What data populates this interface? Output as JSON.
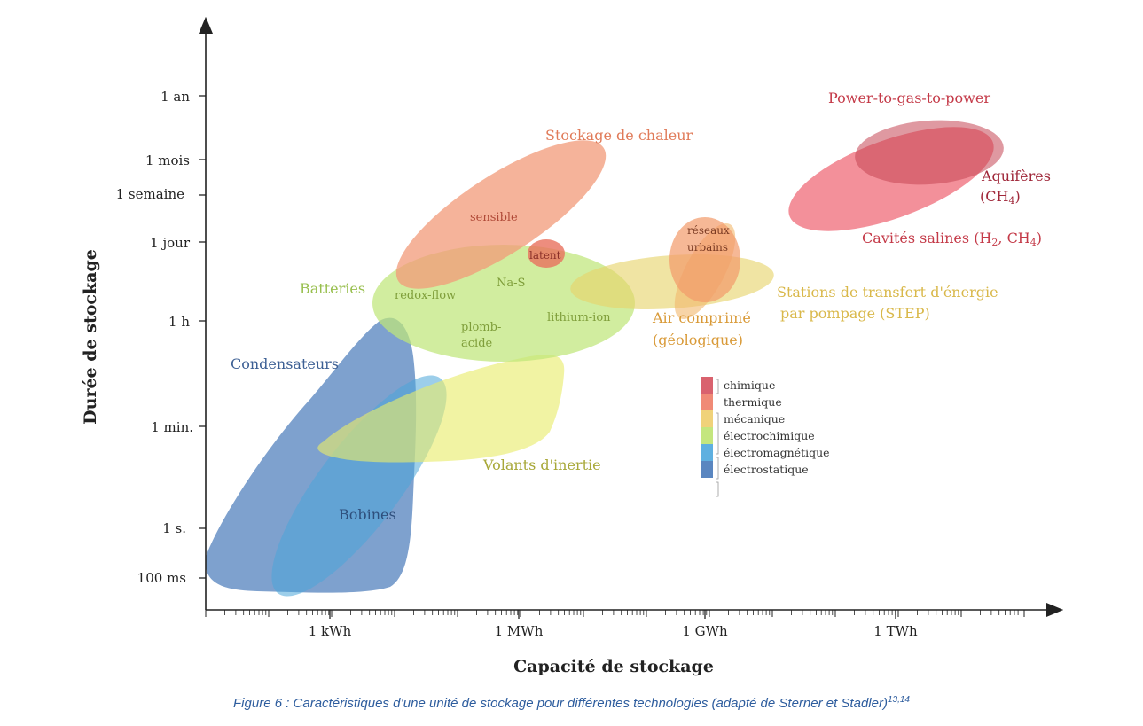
{
  "chart_data": {
    "type": "scatter",
    "xlabel": "Capacité de stockage",
    "ylabel": "Durée de stockage",
    "x_ticks": [
      "1 kWh",
      "1 MWh",
      "1 GWh",
      "1 TWh"
    ],
    "y_ticks": [
      "1 an",
      "1 mois",
      "1 semaine",
      "1 jour",
      "1 h",
      "1 min.",
      "1 s.",
      "100 ms"
    ],
    "x_scale": "log",
    "y_scale": "log",
    "grid": false,
    "series": [
      {
        "name": "Condensateurs",
        "category": "électrostatique",
        "color": "#5a86c0"
      },
      {
        "name": "Bobines",
        "category": "électromagnétique",
        "color": "#4aa6d9"
      },
      {
        "name": "Volants d'inertie",
        "category": "mécanique",
        "color": "#e7ea7a"
      },
      {
        "name": "Batteries",
        "category": "électrochimique",
        "color": "#bfe67a",
        "sublabels": [
          "redox-flow",
          "Na-S",
          "plomb-acide",
          "lithium-ion"
        ]
      },
      {
        "name": "Stockage de chaleur",
        "category": "thermique",
        "color": "#f29a78",
        "sublabels": [
          "sensible",
          "latent"
        ]
      },
      {
        "name": "Air comprimé (géologique)",
        "category": "mécanique",
        "color": "#e8cf6a",
        "sublabels": [
          "réseaux urbains"
        ]
      },
      {
        "name": "Stations de transfert d'énergie par pompage (STEP)",
        "category": "mécanique",
        "color": "#ead36e"
      },
      {
        "name": "Power-to-gas-to-power",
        "category": "chimique",
        "color": "#ef6b78",
        "sublabels": [
          "Aquifères (CH4)",
          "Cavités salines (H2, CH4)"
        ]
      }
    ],
    "legend": {
      "placement": "center-right",
      "items": [
        {
          "label": "chimique",
          "color": "#d9626e"
        },
        {
          "label": "thermique",
          "color": "#f08a76"
        },
        {
          "label": "mécanique",
          "color": "#f0d27a"
        },
        {
          "label": "électrochimique",
          "color": "#c4e67e"
        },
        {
          "label": "électromagnétique",
          "color": "#5fb0e0"
        },
        {
          "label": "électrostatique",
          "color": "#5a86c0"
        }
      ]
    },
    "labels": {
      "condensateurs": "Condensateurs",
      "bobines": "Bobines",
      "volants": "Volants d'inertie",
      "batteries": "Batteries",
      "redox": "redox-flow",
      "nas": "Na-S",
      "plomb1": "plomb-",
      "plomb2": "acide",
      "lithium": "lithium-ion",
      "chaleur": "Stockage de chaleur",
      "sensible": "sensible",
      "latent": "latent",
      "reseaux1": "réseaux",
      "reseaux2": "urbains",
      "air1": "Air comprimé",
      "air2": "(géologique)",
      "step1": "Stations de transfert d'énergie",
      "step2": "par pompage (STEP)",
      "ptg": "Power-to-gas-to-power",
      "aquif1": "Aquifères",
      "aquif2": "(CH",
      "aquif2_sub": "4",
      "aquif2_end": ")",
      "cav1": "Cavités salines (H",
      "cav_sub1": "2",
      "cav2": ", CH",
      "cav_sub2": "4",
      "cav3": ")"
    }
  },
  "caption": {
    "text": "Figure 6 : Caractéristiques d’une unité de stockage pour différentes technologies (adapté de Sterner et Stadler)",
    "refs": "13,14"
  }
}
